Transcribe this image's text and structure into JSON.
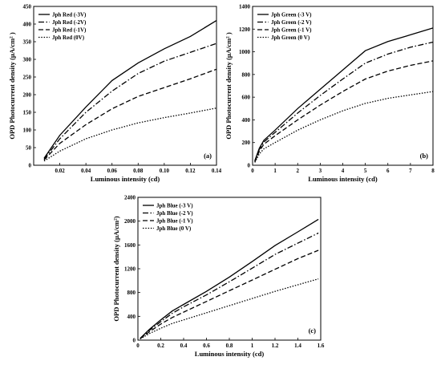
{
  "chart_data": [
    {
      "type": "line",
      "panel_label": "(a)",
      "xlabel": "Luminous intensity (cd)",
      "ylabel": "OPD Photocurrent density (µA/cm² )",
      "xlim": [
        0,
        0.14
      ],
      "ylim": [
        0,
        450
      ],
      "xticks": [
        0.02,
        0.04,
        0.06,
        0.08,
        0.1,
        0.12,
        0.14
      ],
      "xtick_labels": [
        "0.02",
        "0.04",
        "0.06",
        "0.08",
        "0.10",
        "0.12",
        "0.14"
      ],
      "yticks": [
        0,
        50,
        100,
        150,
        200,
        250,
        300,
        350,
        400,
        450
      ],
      "ytick_labels": [
        "0",
        "50",
        "100",
        "150",
        "200",
        "250",
        "300",
        "350",
        "400",
        "450"
      ],
      "legend_position": "top-left",
      "x": [
        0.008,
        0.02,
        0.04,
        0.06,
        0.08,
        0.1,
        0.12,
        0.14
      ],
      "series": [
        {
          "name": "Jph Red (-3V)",
          "dash": "solid",
          "values": [
            20,
            85,
            165,
            240,
            290,
            330,
            365,
            410
          ]
        },
        {
          "name": "Jph Red (-2V)",
          "dash": "dashdot",
          "values": [
            17,
            75,
            150,
            210,
            260,
            295,
            320,
            345
          ]
        },
        {
          "name": "Jph Red (-1V)",
          "dash": "dashed",
          "values": [
            15,
            62,
            115,
            160,
            195,
            220,
            245,
            272
          ]
        },
        {
          "name": "Jph Red (0V)",
          "dash": "dotted",
          "values": [
            12,
            40,
            75,
            100,
            120,
            135,
            148,
            162
          ]
        }
      ]
    },
    {
      "type": "line",
      "panel_label": "(b)",
      "xlabel": "Luminous intensity (cd)",
      "ylabel": "OPD Photocurrent density (µA/cm² )",
      "xlim": [
        0,
        8
      ],
      "ylim": [
        0,
        1400
      ],
      "xticks": [
        0,
        1,
        2,
        3,
        4,
        5,
        6,
        7,
        8
      ],
      "xtick_labels": [
        "0",
        "1",
        "2",
        "3",
        "4",
        "5",
        "6",
        "7",
        "8"
      ],
      "yticks": [
        0,
        200,
        400,
        600,
        800,
        1000,
        1200,
        1400
      ],
      "ytick_labels": [
        "0",
        "200",
        "400",
        "600",
        "800",
        "1000",
        "1200",
        "1400"
      ],
      "legend_position": "top-left",
      "x": [
        0.1,
        0.3,
        0.5,
        1,
        2,
        3,
        4,
        5,
        6,
        7,
        8
      ],
      "series": [
        {
          "name": "Jph Green (-3 V)",
          "dash": "solid",
          "values": [
            40,
            150,
            220,
            310,
            500,
            670,
            840,
            1010,
            1090,
            1150,
            1210
          ]
        },
        {
          "name": "Jph Green (-2 V)",
          "dash": "dashdot",
          "values": [
            35,
            140,
            205,
            290,
            460,
            615,
            760,
            900,
            980,
            1040,
            1085
          ]
        },
        {
          "name": "Jph Green (-1 V)",
          "dash": "dashed",
          "values": [
            30,
            125,
            185,
            260,
            400,
            530,
            650,
            760,
            830,
            880,
            920
          ]
        },
        {
          "name": "Jph Green (0 V)",
          "dash": "dotted",
          "values": [
            25,
            100,
            145,
            200,
            310,
            400,
            480,
            545,
            590,
            620,
            650
          ]
        }
      ]
    },
    {
      "type": "line",
      "panel_label": "(c)",
      "xlabel": "Luminous intensity (cd)",
      "ylabel": "OPD Photocurrent density (µA/cm²)",
      "xlim": [
        0,
        1.6
      ],
      "ylim": [
        0,
        2400
      ],
      "xticks": [
        0,
        0.2,
        0.4,
        0.6,
        0.8,
        1,
        1.2,
        1.4,
        1.6
      ],
      "xtick_labels": [
        "0",
        "0.2",
        "0.4",
        "0.6",
        "0.8",
        "1",
        "1.2",
        "1.4",
        "1.6"
      ],
      "yticks": [
        0,
        400,
        800,
        1200,
        1600,
        2000,
        2400
      ],
      "ytick_labels": [
        "0",
        "400",
        "800",
        "1200",
        "1600",
        "2000",
        "2400"
      ],
      "legend_position": "top-left",
      "x": [
        0.02,
        0.1,
        0.2,
        0.3,
        0.4,
        0.6,
        0.8,
        1,
        1.2,
        1.4,
        1.58
      ],
      "series": [
        {
          "name": "Jph Blue (-3 V)",
          "dash": "solid",
          "values": [
            30,
            180,
            340,
            490,
            600,
            820,
            1060,
            1320,
            1590,
            1820,
            2030
          ]
        },
        {
          "name": "Jph Blue (-2 V)",
          "dash": "dashdot",
          "values": [
            28,
            165,
            310,
            450,
            560,
            760,
            980,
            1210,
            1440,
            1630,
            1800
          ]
        },
        {
          "name": "Jph Blue (-1 V)",
          "dash": "dashed",
          "values": [
            25,
            140,
            270,
            380,
            470,
            650,
            830,
            1010,
            1190,
            1370,
            1510
          ]
        },
        {
          "name": "Jph Blue (0 V)",
          "dash": "dotted",
          "values": [
            20,
            110,
            200,
            280,
            340,
            460,
            580,
            700,
            820,
            930,
            1030
          ]
        }
      ]
    }
  ]
}
